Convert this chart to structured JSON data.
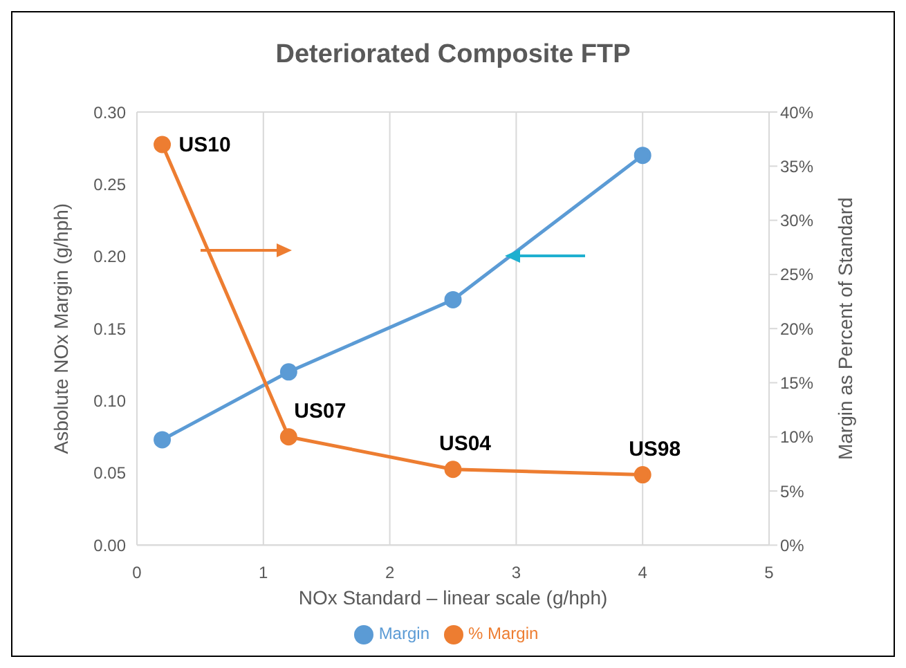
{
  "chart_data": {
    "type": "line",
    "title": "Deteriorated Composite FTP",
    "xlabel": "NOx Standard – linear scale (g/hph)",
    "ylabel": "Asbolute NOx Margin (g/hph)",
    "y2label": "Margin as Percent of Standard",
    "x": [
      0.2,
      1.2,
      2.5,
      4
    ],
    "series": [
      {
        "name": "Margin",
        "color": "#5b9bd5",
        "values": [
          0.073,
          0.12,
          0.17,
          0.27
        ]
      },
      {
        "name": "% Margin",
        "color": "#ed7d31",
        "axis": "y2",
        "values": [
          37,
          10,
          7,
          6.5
        ]
      }
    ],
    "xlim": [
      0,
      5
    ],
    "xticks": [
      0,
      1,
      2,
      3,
      4,
      5
    ],
    "ylim": [
      0,
      0.3
    ],
    "yticks": [
      {
        "value": 0,
        "label": "0.00"
      },
      {
        "value": 0.05,
        "label": "0.05"
      },
      {
        "value": 0.1,
        "label": "0.10"
      },
      {
        "value": 0.15,
        "label": "0.15"
      },
      {
        "value": 0.2,
        "label": "0.20"
      },
      {
        "value": 0.25,
        "label": "0.25"
      },
      {
        "value": 0.3,
        "label": "0.30"
      }
    ],
    "y2lim": [
      0,
      40
    ],
    "y2ticks": [
      {
        "value": 0,
        "label": "0%"
      },
      {
        "value": 5,
        "label": "5%"
      },
      {
        "value": 10,
        "label": "10%"
      },
      {
        "value": 15,
        "label": "15%"
      },
      {
        "value": 20,
        "label": "20%"
      },
      {
        "value": 25,
        "label": "25%"
      },
      {
        "value": 30,
        "label": "30%"
      },
      {
        "value": 35,
        "label": "35%"
      },
      {
        "value": 40,
        "label": "40%"
      }
    ],
    "annotations": [
      "US10",
      "US07",
      "US04",
      "US98"
    ],
    "grid": true,
    "legend": "bottom",
    "marker": "circle",
    "line_style": "solid"
  }
}
